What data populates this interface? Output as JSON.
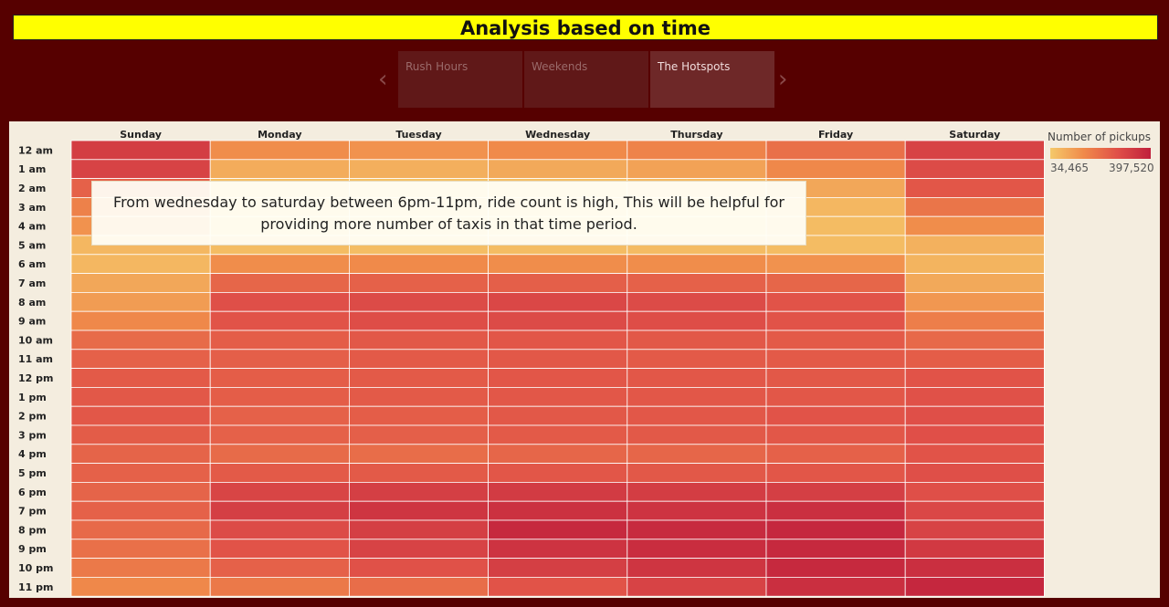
{
  "title": "Analysis based on time",
  "story": {
    "prev_icon": "chevron-left-icon",
    "next_icon": "chevron-right-icon",
    "points": [
      "Rush Hours",
      "Weekends",
      "The Hotspots"
    ],
    "active": "The Hotspots"
  },
  "annotation": "From wednesday to saturday between 6pm-11pm, ride count is high, This will be helpful for providing more number of taxis in that time period.",
  "legend": {
    "title": "Number of pickups",
    "min_label": "34,465",
    "max_label": "397,520",
    "colors": [
      "#f5c96a",
      "#f08a4a",
      "#e05048",
      "#c0203c"
    ]
  },
  "chart_data": {
    "type": "heatmap",
    "x": [
      "Sunday",
      "Monday",
      "Tuesday",
      "Wednesday",
      "Thursday",
      "Friday",
      "Saturday"
    ],
    "y": [
      "12 am",
      "1 am",
      "2 am",
      "3 am",
      "4 am",
      "5 am",
      "6 am",
      "7 am",
      "8 am",
      "9 am",
      "10 am",
      "11 am",
      "12 pm",
      "1 pm",
      "2 pm",
      "3 pm",
      "4 pm",
      "5 pm",
      "6 pm",
      "7 pm",
      "8 pm",
      "9 pm",
      "10 pm",
      "11 pm"
    ],
    "value_range": [
      34465,
      397520
    ],
    "values": [
      [
        325000,
        150000,
        140000,
        155000,
        170000,
        210000,
        310000
      ],
      [
        310000,
        90000,
        85000,
        95000,
        110000,
        160000,
        290000
      ],
      [
        240000,
        55000,
        50000,
        55000,
        65000,
        100000,
        265000
      ],
      [
        175000,
        40000,
        36000,
        38000,
        45000,
        70000,
        200000
      ],
      [
        140000,
        42000,
        38000,
        40000,
        45000,
        60000,
        150000
      ],
      [
        70000,
        60000,
        58000,
        60000,
        62000,
        60000,
        80000
      ],
      [
        70000,
        150000,
        155000,
        150000,
        150000,
        140000,
        75000
      ],
      [
        100000,
        230000,
        240000,
        245000,
        240000,
        230000,
        95000
      ],
      [
        120000,
        280000,
        290000,
        300000,
        290000,
        270000,
        130000
      ],
      [
        160000,
        270000,
        285000,
        290000,
        285000,
        270000,
        180000
      ],
      [
        220000,
        250000,
        260000,
        265000,
        260000,
        255000,
        225000
      ],
      [
        240000,
        245000,
        255000,
        260000,
        255000,
        255000,
        250000
      ],
      [
        255000,
        250000,
        255000,
        265000,
        262000,
        260000,
        270000
      ],
      [
        260000,
        250000,
        255000,
        262000,
        262000,
        262000,
        275000
      ],
      [
        262000,
        240000,
        250000,
        260000,
        262000,
        270000,
        280000
      ],
      [
        252000,
        240000,
        245000,
        255000,
        258000,
        262000,
        278000
      ],
      [
        235000,
        220000,
        215000,
        230000,
        230000,
        240000,
        270000
      ],
      [
        240000,
        255000,
        255000,
        265000,
        260000,
        265000,
        280000
      ],
      [
        235000,
        305000,
        320000,
        330000,
        325000,
        320000,
        280000
      ],
      [
        240000,
        320000,
        345000,
        355000,
        350000,
        360000,
        300000
      ],
      [
        225000,
        290000,
        320000,
        375000,
        370000,
        380000,
        310000
      ],
      [
        210000,
        270000,
        310000,
        350000,
        365000,
        375000,
        335000
      ],
      [
        190000,
        240000,
        275000,
        320000,
        345000,
        375000,
        360000
      ],
      [
        160000,
        190000,
        215000,
        270000,
        310000,
        360000,
        380000
      ]
    ]
  }
}
